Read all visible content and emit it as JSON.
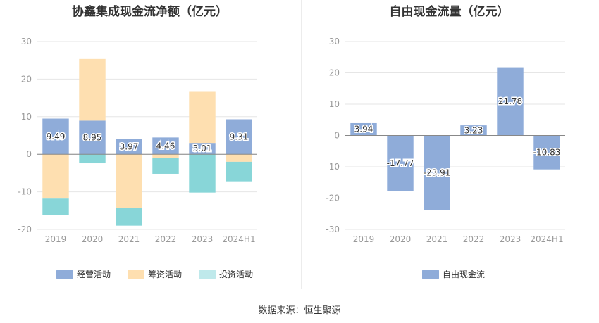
{
  "source_note": "数据来源：恒生聚源",
  "chart_data": [
    {
      "type": "bar",
      "stacked": true,
      "title": "协鑫集成现金流净额（亿元）",
      "categories": [
        "2019",
        "2020",
        "2021",
        "2022",
        "2023",
        "2024H1"
      ],
      "ylim": [
        -20,
        30
      ],
      "yticks": [
        -20,
        -10,
        0,
        10,
        20,
        30
      ],
      "grid": true,
      "legend_position": "bottom",
      "series": [
        {
          "name": "经营活动",
          "color": "#8facd9",
          "values": [
            9.49,
            8.95,
            3.97,
            4.46,
            3.01,
            9.31
          ],
          "labels": [
            "9.49",
            "8.95",
            "3.97",
            "4.46",
            "3.01",
            "9.31"
          ]
        },
        {
          "name": "筹资活动",
          "color": "#fedfb0",
          "values": [
            -11.8,
            16.4,
            -14.2,
            -0.9,
            13.6,
            -2.0
          ]
        },
        {
          "name": "投资活动",
          "color": "#88d6d8",
          "values": [
            -4.4,
            -2.4,
            -4.8,
            -4.3,
            -10.2,
            -5.2
          ]
        }
      ]
    },
    {
      "type": "bar",
      "title": "自由现金流量（亿元）",
      "categories": [
        "2019",
        "2020",
        "2021",
        "2022",
        "2023",
        "2024H1"
      ],
      "ylim": [
        -30,
        30
      ],
      "yticks": [
        -30,
        -20,
        -10,
        0,
        10,
        20,
        30
      ],
      "grid": true,
      "legend_position": "bottom",
      "series": [
        {
          "name": "自由现金流",
          "color": "#8facd9",
          "values": [
            3.94,
            -17.77,
            -23.91,
            3.23,
            21.78,
            -10.83
          ],
          "labels": [
            "3.94",
            "-17.77",
            "-23.91",
            "3.23",
            "21.78",
            "-10.83"
          ]
        }
      ]
    }
  ]
}
